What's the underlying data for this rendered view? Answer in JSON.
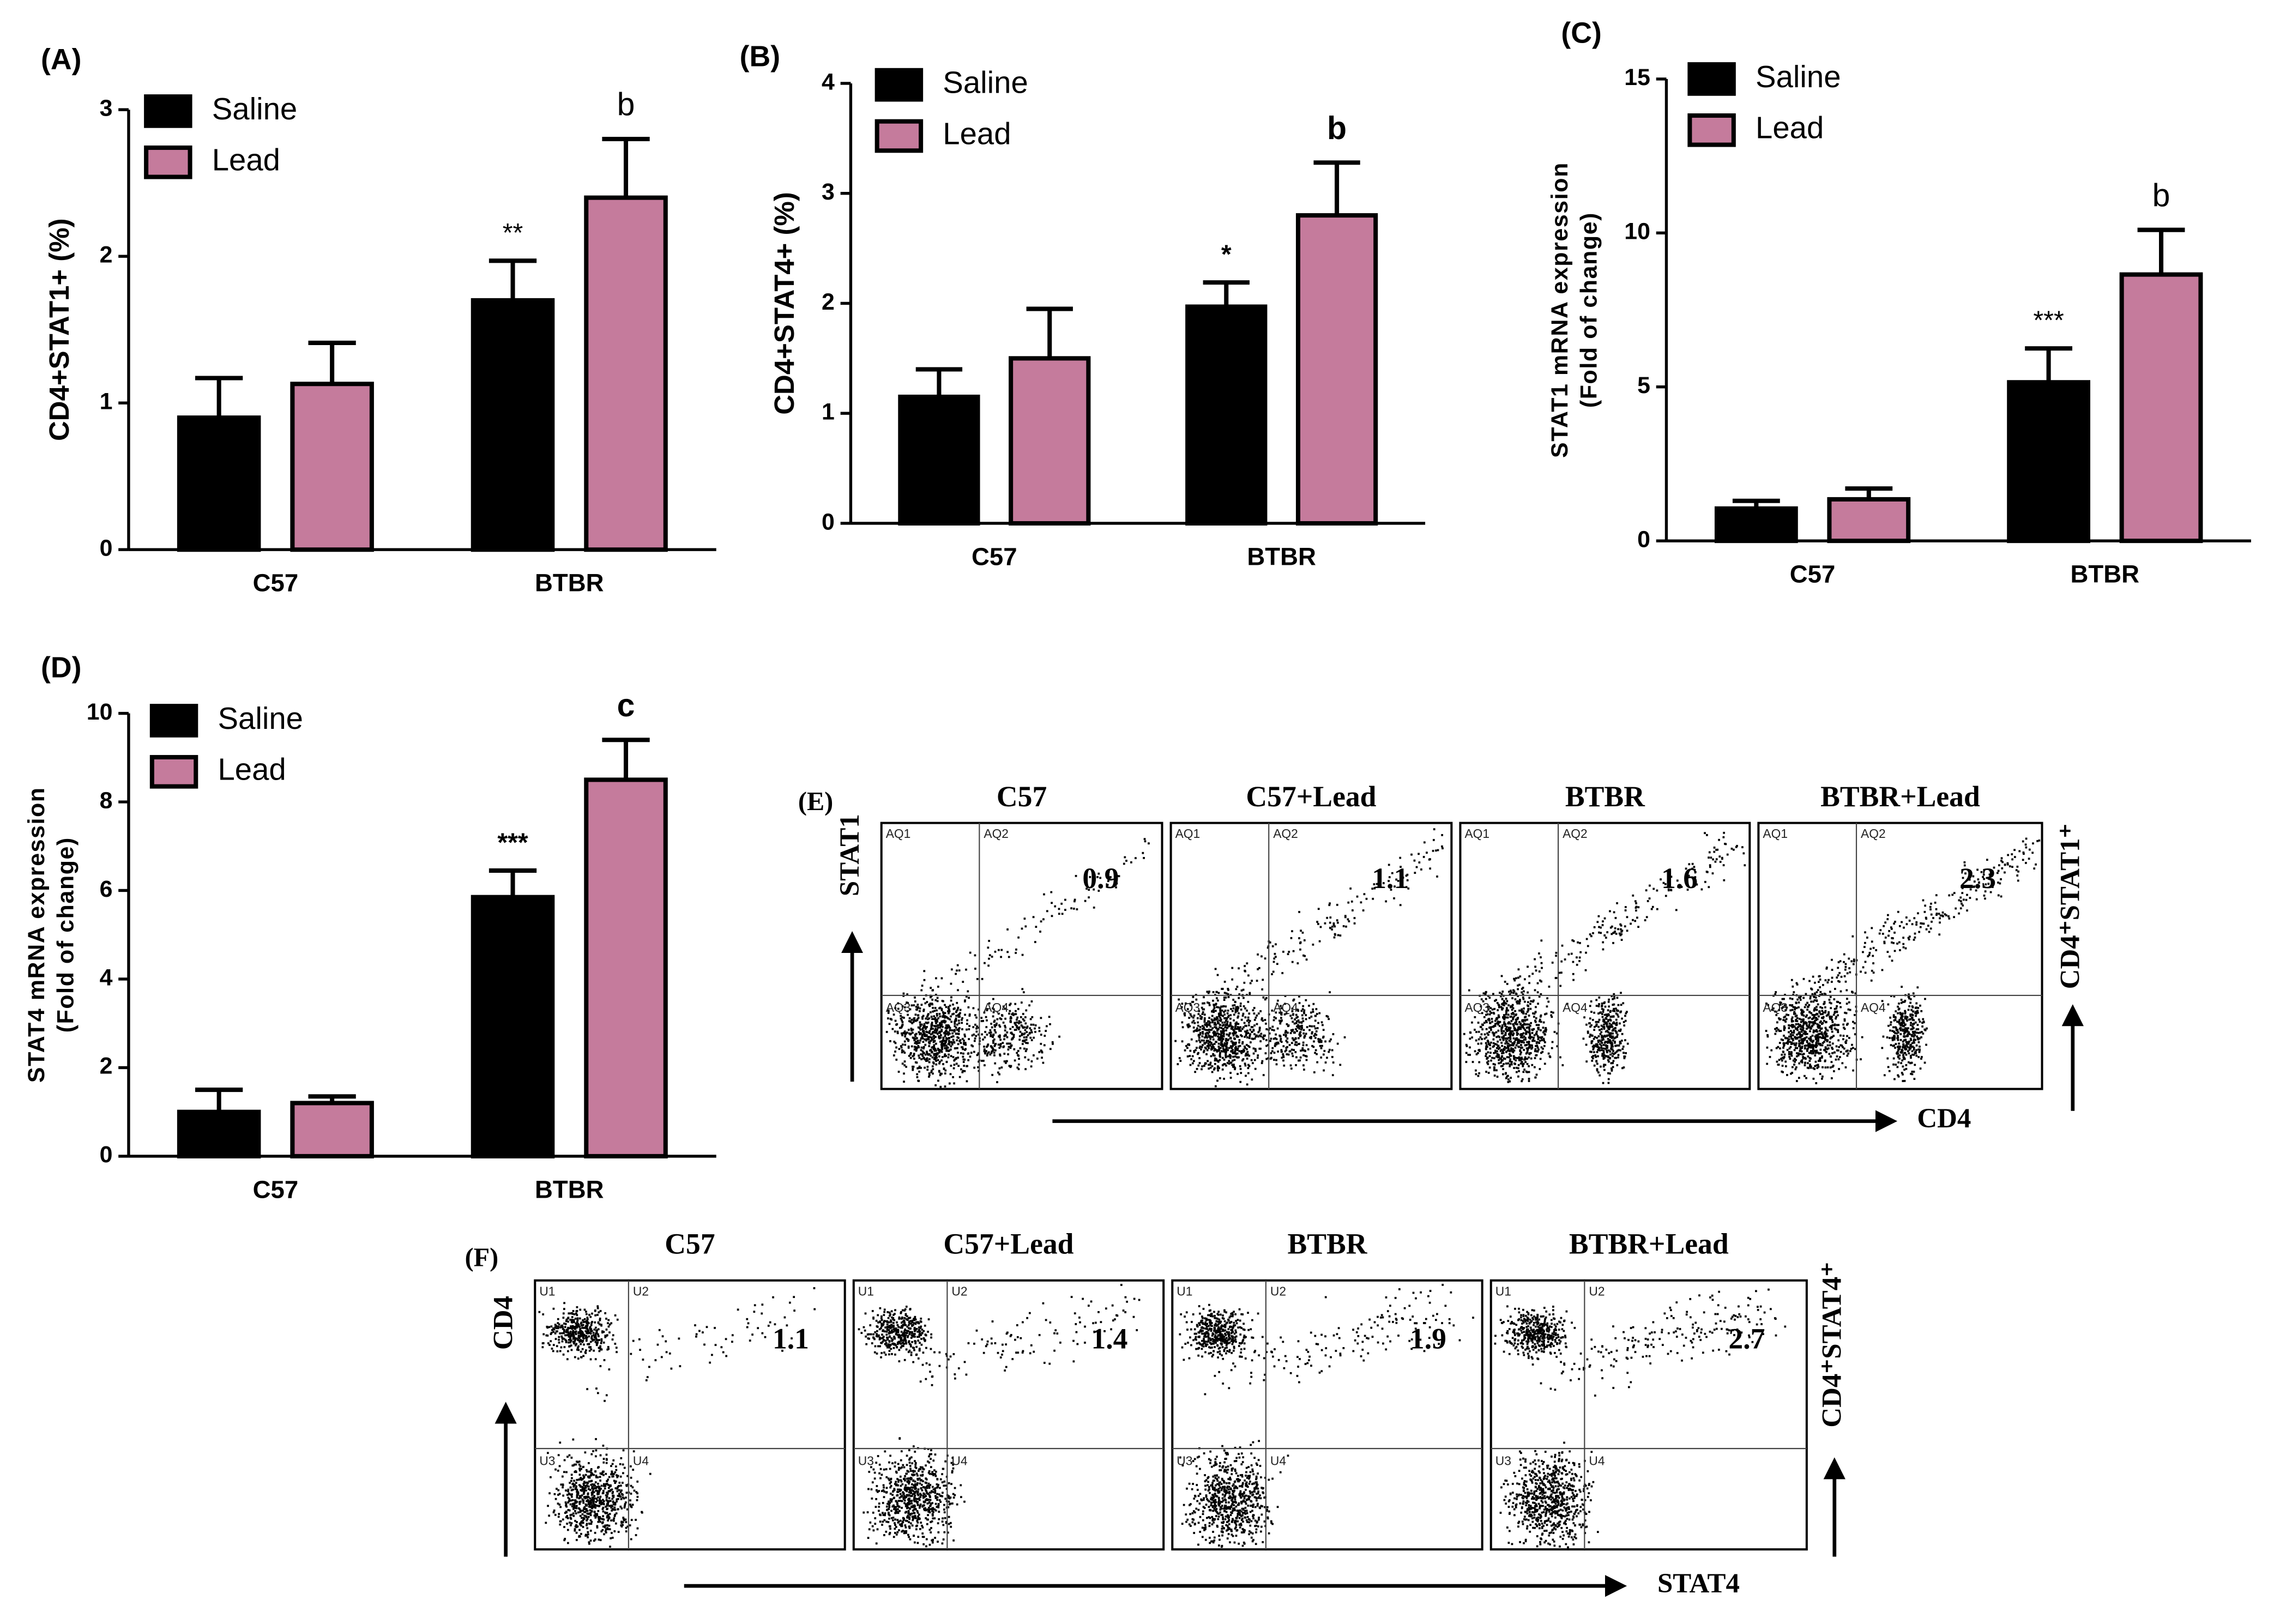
{
  "chart_data": [
    {
      "type": "bar",
      "panel": "(A)",
      "ylabel": [
        "CD4+STAT1+ (%)"
      ],
      "categories": [
        "C57",
        "BTBR"
      ],
      "series": [
        {
          "name": "Saline",
          "color": "#000000",
          "values": [
            0.9,
            1.7
          ],
          "errors": [
            0.27,
            0.27
          ],
          "annotations": [
            null,
            "**"
          ]
        },
        {
          "name": "Lead",
          "color": "#c57b9c",
          "values": [
            1.13,
            2.4
          ],
          "errors": [
            0.28,
            0.4
          ],
          "annotations": [
            null,
            "b"
          ]
        }
      ],
      "ylim": [
        0,
        3
      ],
      "yticks": [
        0,
        1,
        2,
        3
      ]
    },
    {
      "type": "bar",
      "panel": "(B)",
      "ylabel": [
        "CD4+STAT4+ (%)"
      ],
      "categories": [
        "C57",
        "BTBR"
      ],
      "series": [
        {
          "name": "Saline",
          "color": "#000000",
          "values": [
            1.15,
            1.97
          ],
          "errors": [
            0.25,
            0.22
          ],
          "annotations": [
            null,
            "*"
          ]
        },
        {
          "name": "Lead",
          "color": "#c57b9c",
          "values": [
            1.5,
            2.8
          ],
          "errors": [
            0.45,
            0.48
          ],
          "annotations": [
            null,
            "b"
          ]
        }
      ],
      "ylim": [
        0,
        4
      ],
      "yticks": [
        0,
        1,
        2,
        3,
        4
      ]
    },
    {
      "type": "bar",
      "panel": "(C)",
      "ylabel": [
        "STAT1 mRNA expression",
        "(Fold of change)"
      ],
      "categories": [
        "C57",
        "BTBR"
      ],
      "series": [
        {
          "name": "Saline",
          "color": "#000000",
          "values": [
            1.05,
            5.15
          ],
          "errors": [
            0.25,
            1.1
          ],
          "annotations": [
            null,
            "***"
          ]
        },
        {
          "name": "Lead",
          "color": "#c57b9c",
          "values": [
            1.35,
            8.65
          ],
          "errors": [
            0.35,
            1.45
          ],
          "annotations": [
            null,
            "b"
          ]
        }
      ],
      "ylim": [
        0,
        15
      ],
      "yticks": [
        0,
        5,
        10,
        15
      ]
    },
    {
      "type": "bar",
      "panel": "(D)",
      "ylabel": [
        "STAT4 mRNA expression",
        "(Fold of change)"
      ],
      "categories": [
        "C57",
        "BTBR"
      ],
      "series": [
        {
          "name": "Saline",
          "color": "#000000",
          "values": [
            1.0,
            5.85
          ],
          "errors": [
            0.5,
            0.6
          ],
          "annotations": [
            null,
            "***"
          ]
        },
        {
          "name": "Lead",
          "color": "#c57b9c",
          "values": [
            1.2,
            8.5
          ],
          "errors": [
            0.15,
            0.9
          ],
          "annotations": [
            null,
            "c"
          ]
        }
      ],
      "ylim": [
        0,
        10
      ],
      "yticks": [
        0,
        2,
        4,
        6,
        8,
        10
      ]
    }
  ],
  "flow_cytometry": [
    {
      "panel": "(E)",
      "y_axis": "STAT1",
      "x_axis": "CD4",
      "side_label": "CD4⁺STAT1⁺",
      "plots": [
        {
          "title": "C57",
          "value": "0.9",
          "quadrants": [
            "AQ1",
            "AQ2",
            "AQ3",
            "AQ4"
          ]
        },
        {
          "title": "C57+Lead",
          "value": "1.1",
          "quadrants": [
            "AQ1",
            "AQ2",
            "AQ3",
            "AQ4"
          ]
        },
        {
          "title": "BTBR",
          "value": "1.6",
          "quadrants": [
            "AQ1",
            "AQ2",
            "AQ3",
            "AQ4"
          ]
        },
        {
          "title": "BTBR+Lead",
          "value": "2.3",
          "quadrants": [
            "AQ1",
            "AQ2",
            "AQ3",
            "AQ4"
          ]
        }
      ]
    },
    {
      "panel": "(F)",
      "y_axis": "CD4",
      "x_axis": "STAT4",
      "side_label": "CD4⁺STAT4⁺",
      "plots": [
        {
          "title": "C57",
          "value": "1.1",
          "quadrants": [
            "U1",
            "U2",
            "U3",
            "U4"
          ]
        },
        {
          "title": "C57+Lead",
          "value": "1.4",
          "quadrants": [
            "U1",
            "U2",
            "U3",
            "U4"
          ]
        },
        {
          "title": "BTBR",
          "value": "1.9",
          "quadrants": [
            "U1",
            "U2",
            "U3",
            "U4"
          ]
        },
        {
          "title": "BTBR+Lead",
          "value": "2.7",
          "quadrants": [
            "U1",
            "U2",
            "U3",
            "U4"
          ]
        }
      ]
    }
  ]
}
